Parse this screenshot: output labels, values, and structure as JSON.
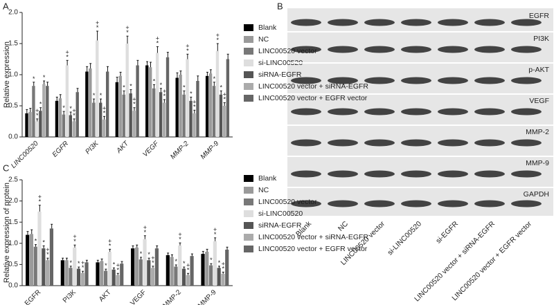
{
  "chart_data": [
    {
      "type": "bar",
      "panel": "A",
      "ylabel": "Relative expression",
      "italic_categories": true,
      "legend": "right",
      "categories": [
        "LINC00520",
        "EGFR",
        "PI3K",
        "AKT",
        "VEGF",
        "MMP-2",
        "MMP-9"
      ],
      "ylim": [
        0,
        2
      ],
      "yticks": [
        {
          "value": 0,
          "label": "0.0"
        },
        0.5,
        {
          "value": 1,
          "label": "1.0"
        },
        1.5,
        {
          "value": 2,
          "label": "2.0"
        }
      ],
      "series": [
        {
          "name": "Blank",
          "color": "#000000",
          "values": [
            0.38,
            0.58,
            1.05,
            0.88,
            1.15,
            0.95,
            0.98
          ],
          "errors": [
            0.06,
            0.06,
            0.08,
            0.08,
            0.06,
            0.08,
            0.06
          ]
        },
        {
          "name": "NC",
          "color": "#9a9a9a",
          "values": [
            0.4,
            0.62,
            1.1,
            0.98,
            1.12,
            1.0,
            1.02
          ],
          "errors": [
            0.06,
            0.06,
            0.08,
            0.06,
            0.08,
            0.06,
            0.06
          ]
        },
        {
          "name": "LINC00520 vector",
          "color": "#787878",
          "values": [
            0.82,
            0.36,
            0.55,
            0.68,
            0.78,
            0.68,
            0.82
          ],
          "errors": [
            0.06,
            0.05,
            0.06,
            0.06,
            0.06,
            0.06,
            0.06
          ],
          "annotations": [
            "*",
            "*",
            "*",
            "*",
            "*",
            "*",
            "*"
          ]
        },
        {
          "name": "si-LINC00520",
          "color": "#dedede",
          "values": [
            0.25,
            1.15,
            1.55,
            1.5,
            1.35,
            1.25,
            1.38
          ],
          "errors": [
            0.04,
            0.08,
            0.15,
            0.12,
            0.1,
            0.08,
            0.12
          ],
          "annotations": [
            "+*",
            "+*",
            "+*",
            "+*",
            "+*",
            "+*",
            "+*"
          ]
        },
        {
          "name": "siRNA-EGFR",
          "color": "#555555",
          "values": [
            0.42,
            0.35,
            0.55,
            0.7,
            0.72,
            0.58,
            0.68
          ],
          "errors": [
            0.05,
            0.05,
            0.06,
            0.06,
            0.06,
            0.06,
            0.06
          ],
          "annotations": [
            "*",
            "*",
            "*",
            "*",
            "*",
            "*",
            "*"
          ]
        },
        {
          "name": "LINC00520 vector + siRNA-EGFR",
          "color": "#ababab",
          "values": [
            0.85,
            0.25,
            0.28,
            0.42,
            0.55,
            0.38,
            0.5
          ],
          "errors": [
            0.05,
            0.04,
            0.05,
            0.05,
            0.05,
            0.05,
            0.05
          ],
          "annotations": [
            "*",
            "+*",
            "+*",
            "+*",
            "+*",
            "+*",
            "+*"
          ]
        },
        {
          "name": "LINC00520 vector + EGFR vector",
          "color": "#666666",
          "values": [
            0.82,
            0.72,
            1.05,
            1.15,
            1.28,
            0.9,
            1.25
          ],
          "errors": [
            0.06,
            0.06,
            0.08,
            0.08,
            0.08,
            0.08,
            0.08
          ]
        }
      ]
    },
    {
      "type": "bar",
      "panel": "C",
      "ylabel": "Relative expression of protein",
      "italic_categories": false,
      "legend": "right",
      "categories": [
        "EGFR",
        "PI3K",
        "AKT",
        "VEGF",
        "MMP-2",
        "MMP-9"
      ],
      "ylim": [
        0,
        2.5
      ],
      "yticks": [
        {
          "value": 0,
          "label": "0.0"
        },
        0.5,
        {
          "value": 1,
          "label": "1.0"
        },
        1.5,
        {
          "value": 2,
          "label": "2.0"
        },
        2.5
      ],
      "series": [
        {
          "name": "Blank",
          "color": "#000000",
          "values": [
            1.2,
            0.6,
            0.55,
            0.88,
            0.72,
            0.75
          ],
          "errors": [
            0.08,
            0.05,
            0.05,
            0.06,
            0.05,
            0.06
          ]
        },
        {
          "name": "NC",
          "color": "#9a9a9a",
          "values": [
            1.22,
            0.6,
            0.58,
            0.9,
            0.68,
            0.8
          ],
          "errors": [
            0.1,
            0.05,
            0.05,
            0.06,
            0.05,
            0.06
          ]
        },
        {
          "name": "LINC00520 vector",
          "color": "#787878",
          "values": [
            0.92,
            0.42,
            0.35,
            0.62,
            0.45,
            0.48
          ],
          "errors": [
            0.05,
            0.04,
            0.04,
            0.05,
            0.04,
            0.04
          ],
          "annotations": [
            "*",
            "*",
            "*",
            "*",
            "*",
            "*"
          ]
        },
        {
          "name": "si-LINC00520",
          "color": "#dedede",
          "values": [
            1.75,
            0.9,
            0.8,
            1.1,
            0.95,
            1.05
          ],
          "errors": [
            0.15,
            0.06,
            0.06,
            0.08,
            0.06,
            0.08
          ],
          "annotations": [
            "+*",
            "+*",
            "+*",
            "+*",
            "+*",
            "+*"
          ]
        },
        {
          "name": "siRNA-EGFR",
          "color": "#555555",
          "values": [
            0.88,
            0.4,
            0.38,
            0.6,
            0.4,
            0.42
          ],
          "errors": [
            0.06,
            0.04,
            0.04,
            0.05,
            0.04,
            0.04
          ],
          "annotations": [
            "*",
            "*",
            "*",
            "*",
            "*",
            "*"
          ]
        },
        {
          "name": "LINC00520 vector + siRNA-EGFR",
          "color": "#ababab",
          "values": [
            0.6,
            0.3,
            0.25,
            0.42,
            0.25,
            0.28
          ],
          "errors": [
            0.05,
            0.04,
            0.04,
            0.04,
            0.04,
            0.04
          ],
          "annotations": [
            "+*",
            "+*",
            "+*",
            "+*",
            "+*",
            "+*"
          ]
        },
        {
          "name": "LINC00520 vector + EGFR vector",
          "color": "#666666",
          "values": [
            1.35,
            0.55,
            0.52,
            0.88,
            0.7,
            0.85
          ],
          "errors": [
            0.1,
            0.05,
            0.05,
            0.06,
            0.05,
            0.06
          ]
        }
      ]
    }
  ],
  "blot": {
    "panel": "B",
    "proteins": [
      "EGFR",
      "PI3K",
      "p-AKT",
      "VEGF",
      "MMP-2",
      "MMP-9",
      "GAPDH"
    ],
    "lanes": [
      "Blank",
      "NC",
      "LINC00520 vector",
      "si-LINC00520",
      "si-EGFR",
      "LINC00520 vector + siRNA-EGFR",
      "LINC00520 vector + EGFR vector"
    ]
  }
}
